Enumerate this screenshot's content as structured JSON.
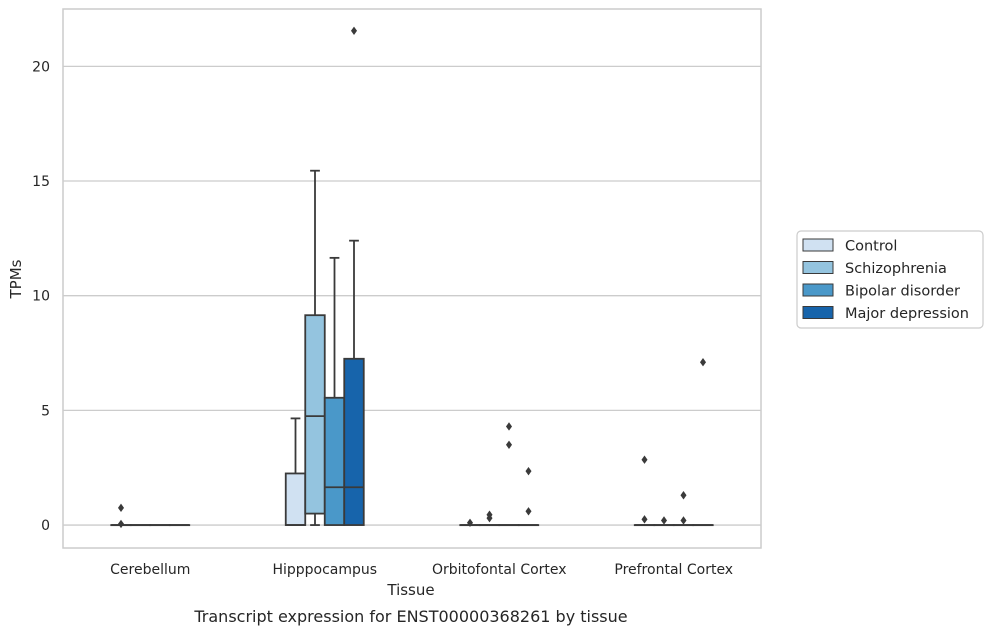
{
  "chart_data": {
    "type": "box",
    "xlabel": "Tissue",
    "ylabel": "TPMs",
    "caption": "Transcript expression for ENST00000368261 by tissue",
    "ylim": [
      -1,
      22.5
    ],
    "yticks": [
      0,
      5,
      10,
      15,
      20
    ],
    "grid": true,
    "legend_placement": "right",
    "categories": [
      "Cerebellum",
      "Hipppocampus",
      "Orbitofontal Cortex",
      "Prefrontal Cortex"
    ],
    "series": [
      {
        "name": "Control",
        "color": "#d0e1f2",
        "boxes": [
          {
            "whislo": 0,
            "q1": 0,
            "med": 0,
            "q3": 0,
            "whishi": 0,
            "fliers": [
              0.75,
              0.05
            ]
          },
          {
            "whislo": 0,
            "q1": 0,
            "med": 0,
            "q3": 2.25,
            "whishi": 4.65,
            "fliers": []
          },
          {
            "whislo": 0,
            "q1": 0,
            "med": 0,
            "q3": 0,
            "whishi": 0,
            "fliers": [
              0.1
            ]
          },
          {
            "whislo": 0,
            "q1": 0,
            "med": 0,
            "q3": 0,
            "whishi": 0,
            "fliers": [
              2.85,
              0.25
            ]
          }
        ]
      },
      {
        "name": "Schizophrenia",
        "color": "#94c4df",
        "boxes": [
          {
            "whislo": 0,
            "q1": 0,
            "med": 0,
            "q3": 0,
            "whishi": 0,
            "fliers": []
          },
          {
            "whislo": 0,
            "q1": 0.5,
            "med": 4.75,
            "q3": 9.15,
            "whishi": 15.45,
            "fliers": []
          },
          {
            "whislo": 0,
            "q1": 0,
            "med": 0,
            "q3": 0,
            "whishi": 0,
            "fliers": [
              0.45,
              0.3
            ]
          },
          {
            "whislo": 0,
            "q1": 0,
            "med": 0,
            "q3": 0,
            "whishi": 0,
            "fliers": [
              0.2
            ]
          }
        ]
      },
      {
        "name": "Bipolar disorder",
        "color": "#4a98c9",
        "boxes": [
          {
            "whislo": 0,
            "q1": 0,
            "med": 0,
            "q3": 0,
            "whishi": 0,
            "fliers": []
          },
          {
            "whislo": 0,
            "q1": 0,
            "med": 1.65,
            "q3": 5.55,
            "whishi": 11.65,
            "fliers": []
          },
          {
            "whislo": 0,
            "q1": 0,
            "med": 0,
            "q3": 0,
            "whishi": 0,
            "fliers": [
              4.3,
              3.5
            ]
          },
          {
            "whislo": 0,
            "q1": 0,
            "med": 0,
            "q3": 0,
            "whishi": 0,
            "fliers": [
              1.3,
              0.2
            ]
          }
        ]
      },
      {
        "name": "Major depression",
        "color": "#1764ab",
        "boxes": [
          {
            "whislo": 0,
            "q1": 0,
            "med": 0,
            "q3": 0,
            "whishi": 0,
            "fliers": []
          },
          {
            "whislo": 0,
            "q1": 0,
            "med": 1.65,
            "q3": 7.25,
            "whishi": 12.4,
            "fliers": [
              21.55
            ]
          },
          {
            "whislo": 0,
            "q1": 0,
            "med": 0,
            "q3": 0,
            "whishi": 0,
            "fliers": [
              2.35,
              0.6
            ]
          },
          {
            "whislo": 0,
            "q1": 0,
            "med": 0,
            "q3": 0,
            "whishi": 0,
            "fliers": [
              7.1
            ]
          }
        ]
      }
    ]
  }
}
